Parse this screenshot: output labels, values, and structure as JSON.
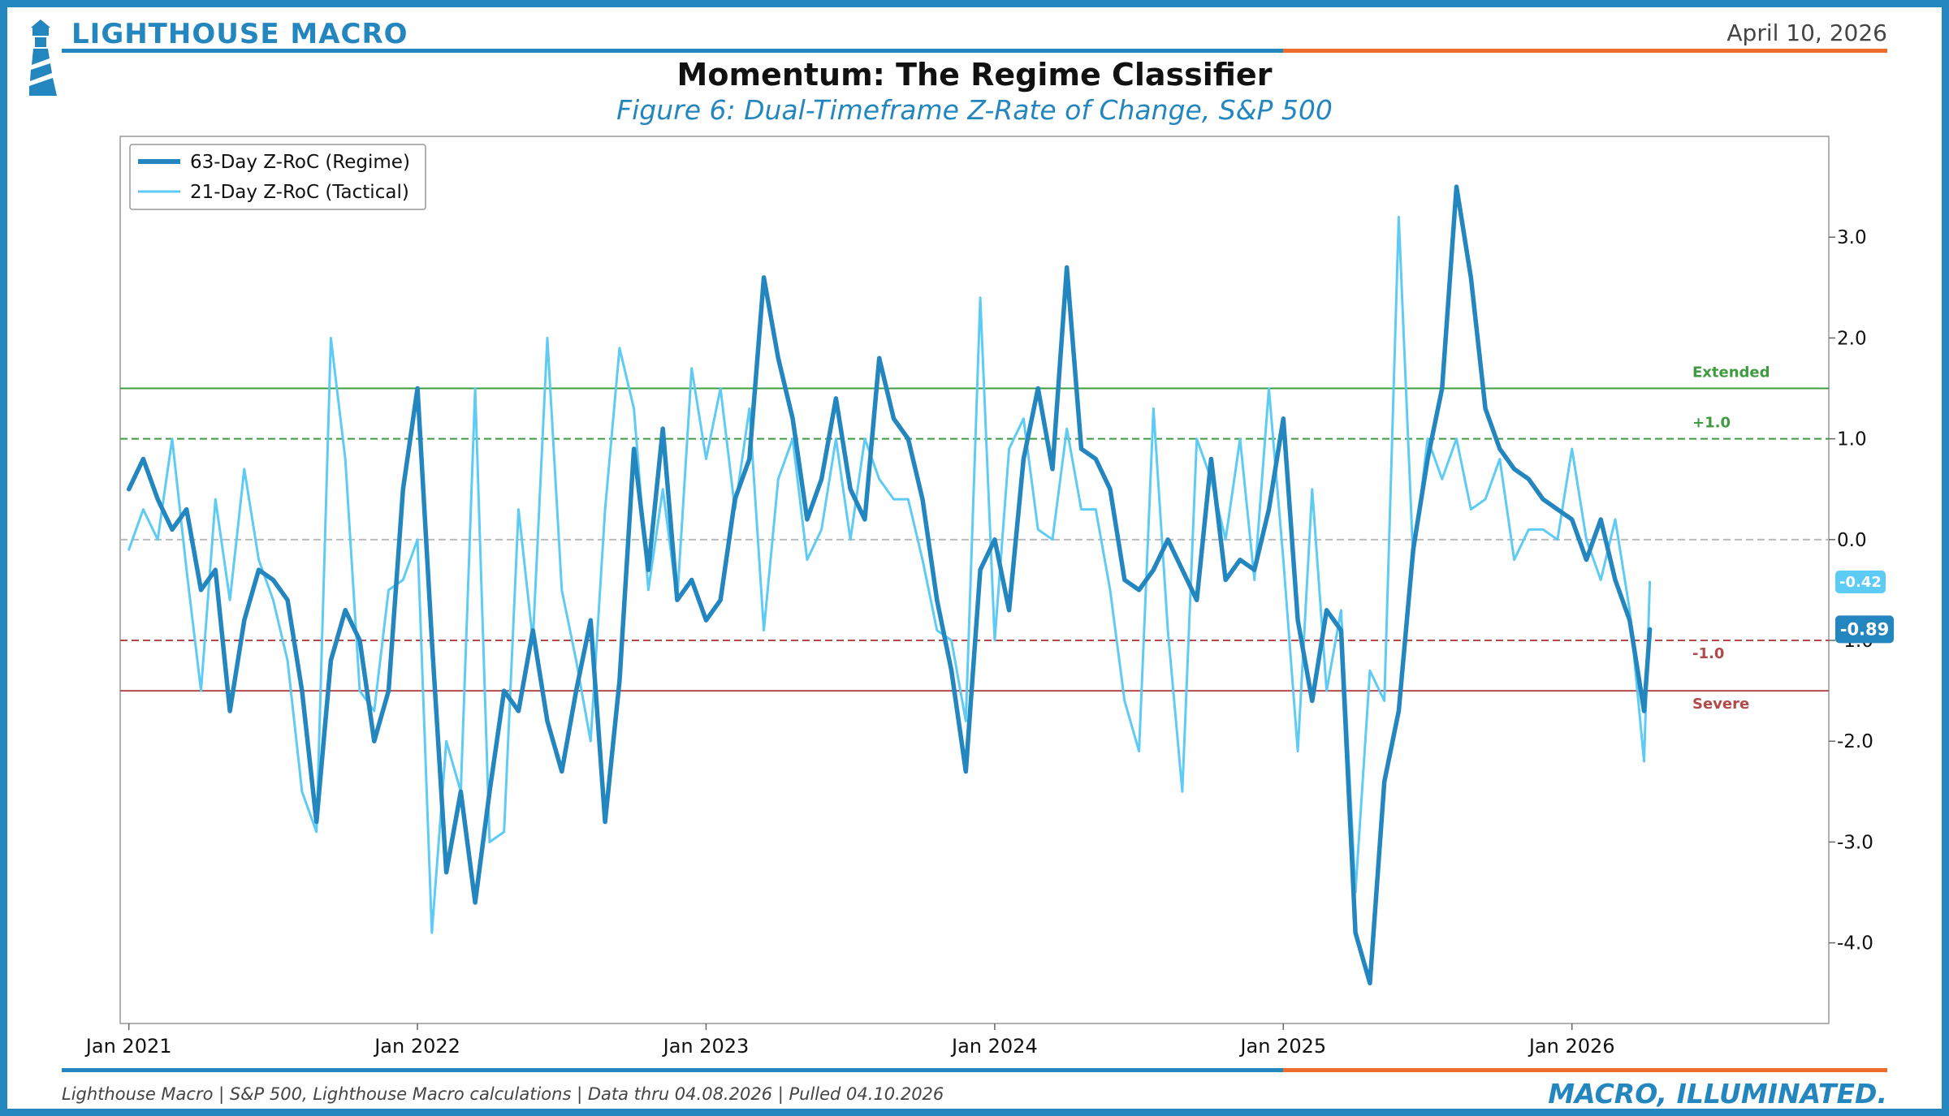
{
  "header": {
    "brand": "LIGHTHOUSE MACRO",
    "date": "April 10, 2026",
    "title": "Momentum: The Regime Classifier",
    "subtitle": "Figure 6: Dual-Timeframe Z-Rate of Change, S&P 500"
  },
  "footer": {
    "source": "Lighthouse Macro | S&P 500, Lighthouse Macro calculations | Data thru 04.08.2026 | Pulled 04.10.2026",
    "tagline": "MACRO, ILLUMINATED."
  },
  "colors": {
    "brand_blue": "#2386be",
    "accent_orange": "#ec6d2c",
    "regime_line": "#2386be",
    "tactical_line": "#5ecbf4",
    "extended_green": "#3f9b3f",
    "severe_red": "#b24a4a"
  },
  "chart_data": {
    "type": "line",
    "title": "Momentum: The Regime Classifier",
    "subtitle": "Figure 6: Dual-Timeframe Z-Rate of Change, S&P 500",
    "xlabel": "",
    "ylabel": "",
    "x_tick_labels": [
      "Jan 2021",
      "Jan 2022",
      "Jan 2023",
      "Jan 2024",
      "Jan 2025",
      "Jan 2026"
    ],
    "x_range_years": [
      2020.97,
      2026.89
    ],
    "y_ticks": [
      3.0,
      2.0,
      1.0,
      0.0,
      -1.0,
      -2.0,
      -3.0,
      -4.0
    ],
    "y_tick_labels": [
      "3.0",
      "2.0",
      "1.0",
      "0.0",
      "-1.0",
      "-2.0",
      "-3.0",
      "-4.0"
    ],
    "ylim": [
      -4.8,
      4.0
    ],
    "legend": {
      "position": "top-left",
      "entries": [
        "63-Day Z-RoC (Regime)",
        "21-Day Z-RoC (Tactical)"
      ]
    },
    "reference_lines": [
      {
        "value": 1.5,
        "label": "Extended",
        "style": "solid",
        "color": "#3f9b3f"
      },
      {
        "value": 1.0,
        "label": "+1.0",
        "style": "dashed",
        "color": "#3f9b3f"
      },
      {
        "value": 0.0,
        "label": "",
        "style": "dashed",
        "color": "#bbbbbb"
      },
      {
        "value": -1.0,
        "label": "-1.0",
        "style": "dashed",
        "color": "#b24a4a"
      },
      {
        "value": -1.5,
        "label": "Severe",
        "style": "solid",
        "color": "#b24a4a"
      }
    ],
    "last_value_labels": [
      {
        "series": "21-Day Z-RoC (Tactical)",
        "value": -0.42,
        "text": "-0.42"
      },
      {
        "series": "63-Day Z-RoC (Regime)",
        "value": -0.89,
        "text": "-0.89"
      }
    ],
    "series": [
      {
        "name": "63-Day Z-RoC (Regime)",
        "color": "#2386be",
        "x": [
          2021.0,
          2021.05,
          2021.1,
          2021.15,
          2021.2,
          2021.25,
          2021.3,
          2021.35,
          2021.4,
          2021.45,
          2021.5,
          2021.55,
          2021.6,
          2021.65,
          2021.7,
          2021.75,
          2021.8,
          2021.85,
          2021.9,
          2021.95,
          2022.0,
          2022.05,
          2022.1,
          2022.15,
          2022.2,
          2022.25,
          2022.3,
          2022.35,
          2022.4,
          2022.45,
          2022.5,
          2022.55,
          2022.6,
          2022.65,
          2022.7,
          2022.75,
          2022.8,
          2022.85,
          2022.9,
          2022.95,
          2023.0,
          2023.05,
          2023.1,
          2023.15,
          2023.2,
          2023.25,
          2023.3,
          2023.35,
          2023.4,
          2023.45,
          2023.5,
          2023.55,
          2023.6,
          2023.65,
          2023.7,
          2023.75,
          2023.8,
          2023.85,
          2023.9,
          2023.95,
          2024.0,
          2024.05,
          2024.1,
          2024.15,
          2024.2,
          2024.25,
          2024.3,
          2024.35,
          2024.4,
          2024.45,
          2024.5,
          2024.55,
          2024.6,
          2024.65,
          2024.7,
          2024.75,
          2024.8,
          2024.85,
          2024.9,
          2024.95,
          2025.0,
          2025.05,
          2025.1,
          2025.15,
          2025.2,
          2025.25,
          2025.3,
          2025.35,
          2025.4,
          2025.45,
          2025.5,
          2025.55,
          2025.6,
          2025.65,
          2025.7,
          2025.75,
          2025.8,
          2025.85,
          2025.9,
          2025.95,
          2026.0,
          2026.05,
          2026.1,
          2026.15,
          2026.2,
          2026.25,
          2026.27
        ],
        "values": [
          0.5,
          0.8,
          0.4,
          0.1,
          0.3,
          -0.5,
          -0.3,
          -1.7,
          -0.8,
          -0.3,
          -0.4,
          -0.6,
          -1.5,
          -2.8,
          -1.2,
          -0.7,
          -1.0,
          -2.0,
          -1.5,
          0.5,
          1.5,
          -1.0,
          -3.3,
          -2.5,
          -3.6,
          -2.5,
          -1.5,
          -1.7,
          -0.9,
          -1.8,
          -2.3,
          -1.5,
          -0.8,
          -2.8,
          -1.4,
          0.9,
          -0.3,
          1.1,
          -0.6,
          -0.4,
          -0.8,
          -0.6,
          0.4,
          0.8,
          2.6,
          1.8,
          1.2,
          0.2,
          0.6,
          1.4,
          0.5,
          0.2,
          1.8,
          1.2,
          1.0,
          0.4,
          -0.6,
          -1.3,
          -2.3,
          -0.3,
          0.0,
          -0.7,
          0.8,
          1.5,
          0.7,
          2.7,
          0.9,
          0.8,
          0.5,
          -0.4,
          -0.5,
          -0.3,
          0.0,
          -0.3,
          -0.6,
          0.8,
          -0.4,
          -0.2,
          -0.3,
          0.3,
          1.2,
          -0.8,
          -1.6,
          -0.7,
          -0.9,
          -3.9,
          -4.4,
          -2.4,
          -1.7,
          -0.1,
          0.8,
          1.5,
          3.5,
          2.6,
          1.3,
          0.9,
          0.7,
          0.6,
          0.4,
          0.3,
          0.2,
          -0.2,
          0.2,
          -0.4,
          -0.8,
          -1.7,
          -0.89
        ]
      },
      {
        "name": "21-Day Z-RoC (Tactical)",
        "color": "#5ecbf4",
        "x": [
          2021.0,
          2021.05,
          2021.1,
          2021.15,
          2021.2,
          2021.25,
          2021.3,
          2021.35,
          2021.4,
          2021.45,
          2021.5,
          2021.55,
          2021.6,
          2021.65,
          2021.7,
          2021.75,
          2021.8,
          2021.85,
          2021.9,
          2021.95,
          2022.0,
          2022.05,
          2022.1,
          2022.15,
          2022.2,
          2022.25,
          2022.3,
          2022.35,
          2022.4,
          2022.45,
          2022.5,
          2022.55,
          2022.6,
          2022.65,
          2022.7,
          2022.75,
          2022.8,
          2022.85,
          2022.9,
          2022.95,
          2023.0,
          2023.05,
          2023.1,
          2023.15,
          2023.2,
          2023.25,
          2023.3,
          2023.35,
          2023.4,
          2023.45,
          2023.5,
          2023.55,
          2023.6,
          2023.65,
          2023.7,
          2023.75,
          2023.8,
          2023.85,
          2023.9,
          2023.95,
          2024.0,
          2024.05,
          2024.1,
          2024.15,
          2024.2,
          2024.25,
          2024.3,
          2024.35,
          2024.4,
          2024.45,
          2024.5,
          2024.55,
          2024.6,
          2024.65,
          2024.7,
          2024.75,
          2024.8,
          2024.85,
          2024.9,
          2024.95,
          2025.0,
          2025.05,
          2025.1,
          2025.15,
          2025.2,
          2025.25,
          2025.3,
          2025.35,
          2025.4,
          2025.45,
          2025.5,
          2025.55,
          2025.6,
          2025.65,
          2025.7,
          2025.75,
          2025.8,
          2025.85,
          2025.9,
          2025.95,
          2026.0,
          2026.05,
          2026.1,
          2026.15,
          2026.2,
          2026.25,
          2026.27
        ],
        "values": [
          -0.1,
          0.3,
          0.0,
          1.0,
          -0.3,
          -1.5,
          0.4,
          -0.6,
          0.7,
          -0.2,
          -0.6,
          -1.2,
          -2.5,
          -2.9,
          2.0,
          0.8,
          -1.5,
          -1.7,
          -0.5,
          -0.4,
          0.0,
          -3.9,
          -2.0,
          -2.5,
          1.5,
          -3.0,
          -2.9,
          0.3,
          -1.0,
          2.0,
          -0.5,
          -1.2,
          -2.0,
          0.3,
          1.9,
          1.3,
          -0.5,
          0.5,
          -0.6,
          1.7,
          0.8,
          1.5,
          0.3,
          1.3,
          -0.9,
          0.6,
          1.0,
          -0.2,
          0.1,
          1.0,
          0.0,
          1.0,
          0.6,
          0.4,
          0.4,
          -0.2,
          -0.9,
          -1.0,
          -1.8,
          2.4,
          -1.0,
          0.9,
          1.2,
          0.1,
          0.0,
          1.1,
          0.3,
          0.3,
          -0.5,
          -1.6,
          -2.1,
          1.3,
          -0.9,
          -2.5,
          1.0,
          0.6,
          0.0,
          1.0,
          -0.4,
          1.5,
          -0.2,
          -2.1,
          0.5,
          -1.5,
          -0.7,
          -3.5,
          -1.3,
          -1.6,
          3.2,
          -0.2,
          1.0,
          0.6,
          1.0,
          0.3,
          0.4,
          0.8,
          -0.2,
          0.1,
          0.1,
          0.0,
          0.9,
          0.0,
          -0.4,
          0.2,
          -0.7,
          -2.2,
          -0.42
        ]
      }
    ]
  }
}
